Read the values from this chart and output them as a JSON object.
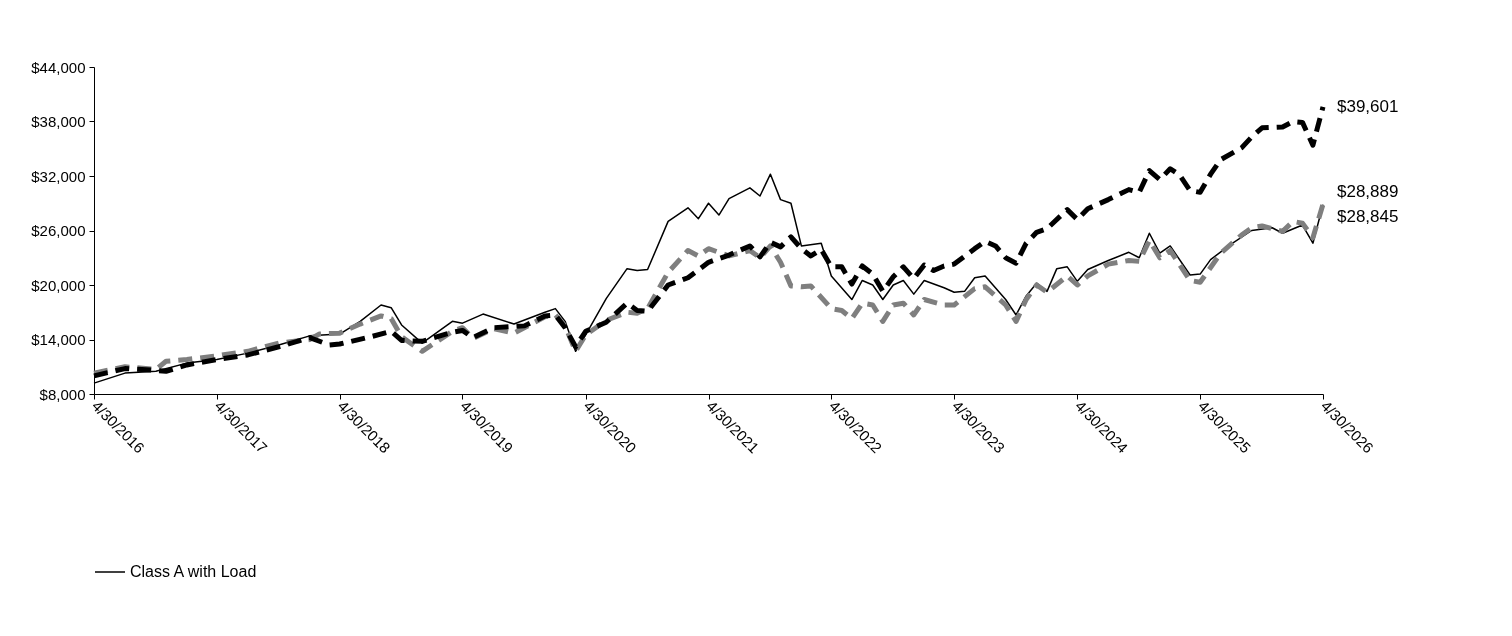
{
  "chart_data": {
    "type": "line",
    "series": [
      {
        "name": "Class A with Load",
        "color": "#000000",
        "line_style": "solid",
        "x": [
          "2016-04-30",
          "2016-07-31",
          "2016-10-31",
          "2017-01-31",
          "2017-04-30",
          "2017-07-31",
          "2017-10-31",
          "2018-01-31",
          "2018-04-30",
          "2018-06-30",
          "2018-08-31",
          "2018-09-30",
          "2018-10-31",
          "2018-12-31",
          "2019-03-31",
          "2019-04-30",
          "2019-06-30",
          "2019-09-30",
          "2019-12-31",
          "2020-01-31",
          "2020-02-29",
          "2020-03-31",
          "2020-04-30",
          "2020-06-30",
          "2020-08-31",
          "2020-09-30",
          "2020-10-31",
          "2020-12-31",
          "2021-02-28",
          "2021-03-31",
          "2021-04-30",
          "2021-05-31",
          "2021-06-30",
          "2021-08-31",
          "2021-09-30",
          "2021-10-31",
          "2021-11-30",
          "2021-12-31",
          "2022-01-31",
          "2022-03-31",
          "2022-04-30",
          "2022-06-30",
          "2022-07-31",
          "2022-08-31",
          "2022-09-30",
          "2022-10-31",
          "2022-11-30",
          "2022-12-31",
          "2023-01-31",
          "2023-03-31",
          "2023-04-30",
          "2023-05-31",
          "2023-06-30",
          "2023-07-31",
          "2023-09-30",
          "2023-10-31",
          "2023-11-30",
          "2023-12-31",
          "2024-01-31",
          "2024-02-29",
          "2024-03-31",
          "2024-04-30",
          "2024-05-31",
          "2024-07-31",
          "2024-09-30",
          "2024-10-31",
          "2024-11-30",
          "2024-12-31",
          "2025-01-31",
          "2025-03-31",
          "2025-04-30",
          "2025-05-31",
          "2025-07-31",
          "2025-09-30",
          "2025-11-30",
          "2025-12-31",
          "2026-02-28",
          "2026-03-31",
          "2026-04-30"
        ],
        "values": [
          9200,
          10300,
          10500,
          11400,
          11800,
          12500,
          13400,
          14400,
          14600,
          16000,
          17800,
          17500,
          15600,
          13600,
          16000,
          15800,
          16800,
          15700,
          17000,
          17400,
          16000,
          12700,
          14500,
          18500,
          21800,
          21600,
          21700,
          27000,
          28500,
          27300,
          29000,
          27700,
          29500,
          30700,
          29800,
          32200,
          29400,
          29000,
          24300,
          24600,
          21000,
          18400,
          20500,
          20000,
          18400,
          20000,
          20500,
          19000,
          20500,
          19700,
          19200,
          19300,
          20800,
          21000,
          18400,
          16700,
          18800,
          20200,
          19300,
          21800,
          22000,
          20400,
          21700,
          22700,
          23600,
          23000,
          25700,
          23500,
          24300,
          21100,
          21200,
          22800,
          24500,
          26000,
          26300,
          25700,
          26600,
          24600,
          28845
        ]
      },
      {
        "color": "#7f7f7f",
        "line_style": "dashed",
        "x": [
          "2016-04-30",
          "2016-07-31",
          "2016-10-31",
          "2016-11-30",
          "2017-01-31",
          "2017-04-30",
          "2017-07-31",
          "2017-10-31",
          "2018-01-31",
          "2018-02-28",
          "2018-04-30",
          "2018-06-30",
          "2018-08-31",
          "2018-09-30",
          "2018-10-31",
          "2018-12-31",
          "2019-03-31",
          "2019-04-30",
          "2019-05-31",
          "2019-07-31",
          "2019-09-30",
          "2019-12-31",
          "2020-01-31",
          "2020-02-29",
          "2020-03-31",
          "2020-04-30",
          "2020-06-30",
          "2020-08-31",
          "2020-09-30",
          "2020-10-31",
          "2020-12-31",
          "2021-02-28",
          "2021-03-31",
          "2021-04-30",
          "2021-06-30",
          "2021-08-31",
          "2021-09-30",
          "2021-10-31",
          "2021-11-30",
          "2021-12-31",
          "2022-01-31",
          "2022-02-28",
          "2022-04-30",
          "2022-05-31",
          "2022-06-30",
          "2022-07-31",
          "2022-08-31",
          "2022-09-30",
          "2022-10-31",
          "2022-11-30",
          "2022-12-31",
          "2023-01-31",
          "2023-03-31",
          "2023-04-30",
          "2023-06-30",
          "2023-07-31",
          "2023-09-30",
          "2023-10-31",
          "2023-11-30",
          "2023-12-31",
          "2024-01-31",
          "2024-03-31",
          "2024-04-30",
          "2024-05-31",
          "2024-07-31",
          "2024-09-30",
          "2024-10-31",
          "2024-11-30",
          "2024-12-31",
          "2025-01-31",
          "2025-03-31",
          "2025-04-30",
          "2025-06-30",
          "2025-08-31",
          "2025-09-30",
          "2025-10-31",
          "2025-12-31",
          "2026-01-31",
          "2026-02-28",
          "2026-03-31",
          "2026-04-30"
        ],
        "values": [
          10300,
          11000,
          10700,
          11600,
          11800,
          12200,
          12700,
          13600,
          14000,
          14600,
          14700,
          15700,
          16600,
          16300,
          14300,
          12700,
          14900,
          15300,
          14100,
          15200,
          14700,
          16500,
          16700,
          15500,
          12700,
          14500,
          16100,
          17000,
          16900,
          17400,
          21400,
          23800,
          23200,
          24000,
          23200,
          23800,
          23000,
          24300,
          22500,
          19900,
          19800,
          19900,
          17400,
          17200,
          16300,
          18000,
          17800,
          16000,
          17800,
          18000,
          16700,
          18400,
          17800,
          17800,
          19600,
          19800,
          17800,
          16000,
          18400,
          20000,
          19200,
          21000,
          20000,
          21000,
          22300,
          22700,
          22600,
          24900,
          23000,
          23800,
          20500,
          20300,
          23500,
          25500,
          26300,
          26500,
          25900,
          27000,
          26800,
          25200,
          28889
        ]
      },
      {
        "color": "#000000",
        "line_style": "dashed",
        "x": [
          "2016-04-30",
          "2016-07-31",
          "2016-10-31",
          "2016-11-30",
          "2017-01-31",
          "2017-04-30",
          "2017-07-31",
          "2017-10-31",
          "2018-01-31",
          "2018-03-31",
          "2018-04-30",
          "2018-07-31",
          "2018-09-30",
          "2018-10-31",
          "2018-12-31",
          "2019-03-31",
          "2019-04-30",
          "2019-05-31",
          "2019-07-31",
          "2019-10-31",
          "2019-12-31",
          "2020-01-31",
          "2020-02-29",
          "2020-03-31",
          "2020-04-30",
          "2020-06-30",
          "2020-08-31",
          "2020-09-30",
          "2020-10-31",
          "2020-12-31",
          "2021-02-28",
          "2021-04-30",
          "2021-06-30",
          "2021-08-31",
          "2021-09-30",
          "2021-10-31",
          "2021-11-30",
          "2021-12-31",
          "2022-01-31",
          "2022-02-28",
          "2022-03-31",
          "2022-04-30",
          "2022-05-31",
          "2022-06-30",
          "2022-07-31",
          "2022-08-31",
          "2022-09-30",
          "2022-10-31",
          "2022-11-30",
          "2022-12-31",
          "2023-01-31",
          "2023-02-28",
          "2023-03-31",
          "2023-04-30",
          "2023-06-30",
          "2023-07-31",
          "2023-08-31",
          "2023-09-30",
          "2023-10-31",
          "2023-11-30",
          "2023-12-31",
          "2024-01-31",
          "2024-03-31",
          "2024-04-30",
          "2024-05-31",
          "2024-07-31",
          "2024-09-30",
          "2024-10-31",
          "2024-11-30",
          "2024-12-31",
          "2025-01-31",
          "2025-02-28",
          "2025-03-31",
          "2025-04-30",
          "2025-05-31",
          "2025-06-30",
          "2025-08-31",
          "2025-09-30",
          "2025-10-31",
          "2025-12-31",
          "2026-01-31",
          "2026-02-28",
          "2026-03-31",
          "2026-04-30"
        ],
        "values": [
          10000,
          10800,
          10600,
          10500,
          11200,
          11800,
          12300,
          13200,
          14200,
          13400,
          13500,
          14300,
          14900,
          13900,
          13800,
          14800,
          15000,
          14200,
          15300,
          15500,
          16600,
          16700,
          15300,
          13200,
          14900,
          15900,
          18000,
          17200,
          17100,
          20000,
          20800,
          22500,
          23300,
          24300,
          23100,
          24700,
          24200,
          25300,
          24000,
          23200,
          23900,
          22000,
          22000,
          20100,
          22100,
          21200,
          19300,
          20900,
          22000,
          20700,
          22200,
          21600,
          22100,
          22300,
          24000,
          24800,
          24300,
          23000,
          22400,
          24600,
          25800,
          26200,
          28300,
          27200,
          28400,
          29400,
          30500,
          30200,
          32600,
          31600,
          32800,
          32100,
          30400,
          30200,
          32200,
          33800,
          35100,
          36300,
          37300,
          37400,
          38000,
          37900,
          35400,
          39601
        ]
      }
    ],
    "xlim": [
      "2016-04-30",
      "2026-04-30"
    ],
    "xticks": [
      {
        "value": "2016-04-30",
        "label": "4/30/2016"
      },
      {
        "value": "2017-04-30",
        "label": "4/30/2017"
      },
      {
        "value": "2018-04-30",
        "label": "4/30/2018"
      },
      {
        "value": "2019-04-30",
        "label": "4/30/2019"
      },
      {
        "value": "2020-04-30",
        "label": "4/30/2020"
      },
      {
        "value": "2021-04-30",
        "label": "4/30/2021"
      },
      {
        "value": "2022-04-30",
        "label": "4/30/2022"
      },
      {
        "value": "2023-04-30",
        "label": "4/30/2023"
      },
      {
        "value": "2024-04-30",
        "label": "4/30/2024"
      },
      {
        "value": "2025-04-30",
        "label": "4/30/2025"
      },
      {
        "value": "2026-04-30",
        "label": "4/30/2026"
      }
    ],
    "ylim": [
      8000,
      44000
    ],
    "yticks": [
      {
        "value": 8000,
        "label": "$8,000"
      },
      {
        "value": 14000,
        "label": "$14,000"
      },
      {
        "value": 20000,
        "label": "$20,000"
      },
      {
        "value": 26000,
        "label": "$26,000"
      },
      {
        "value": 32000,
        "label": "$32,000"
      },
      {
        "value": 38000,
        "label": "$38,000"
      },
      {
        "value": 44000,
        "label": "$44,000"
      }
    ],
    "annotations": [
      {
        "text": "$39,601",
        "x": "2026-04-30",
        "y": 39601
      },
      {
        "text": "$28,889",
        "x": "2026-04-30",
        "y": 28889
      },
      {
        "text": "$28,845",
        "x": "2026-04-30",
        "y": 28845
      }
    ],
    "grid": false,
    "legend": "bottom"
  }
}
